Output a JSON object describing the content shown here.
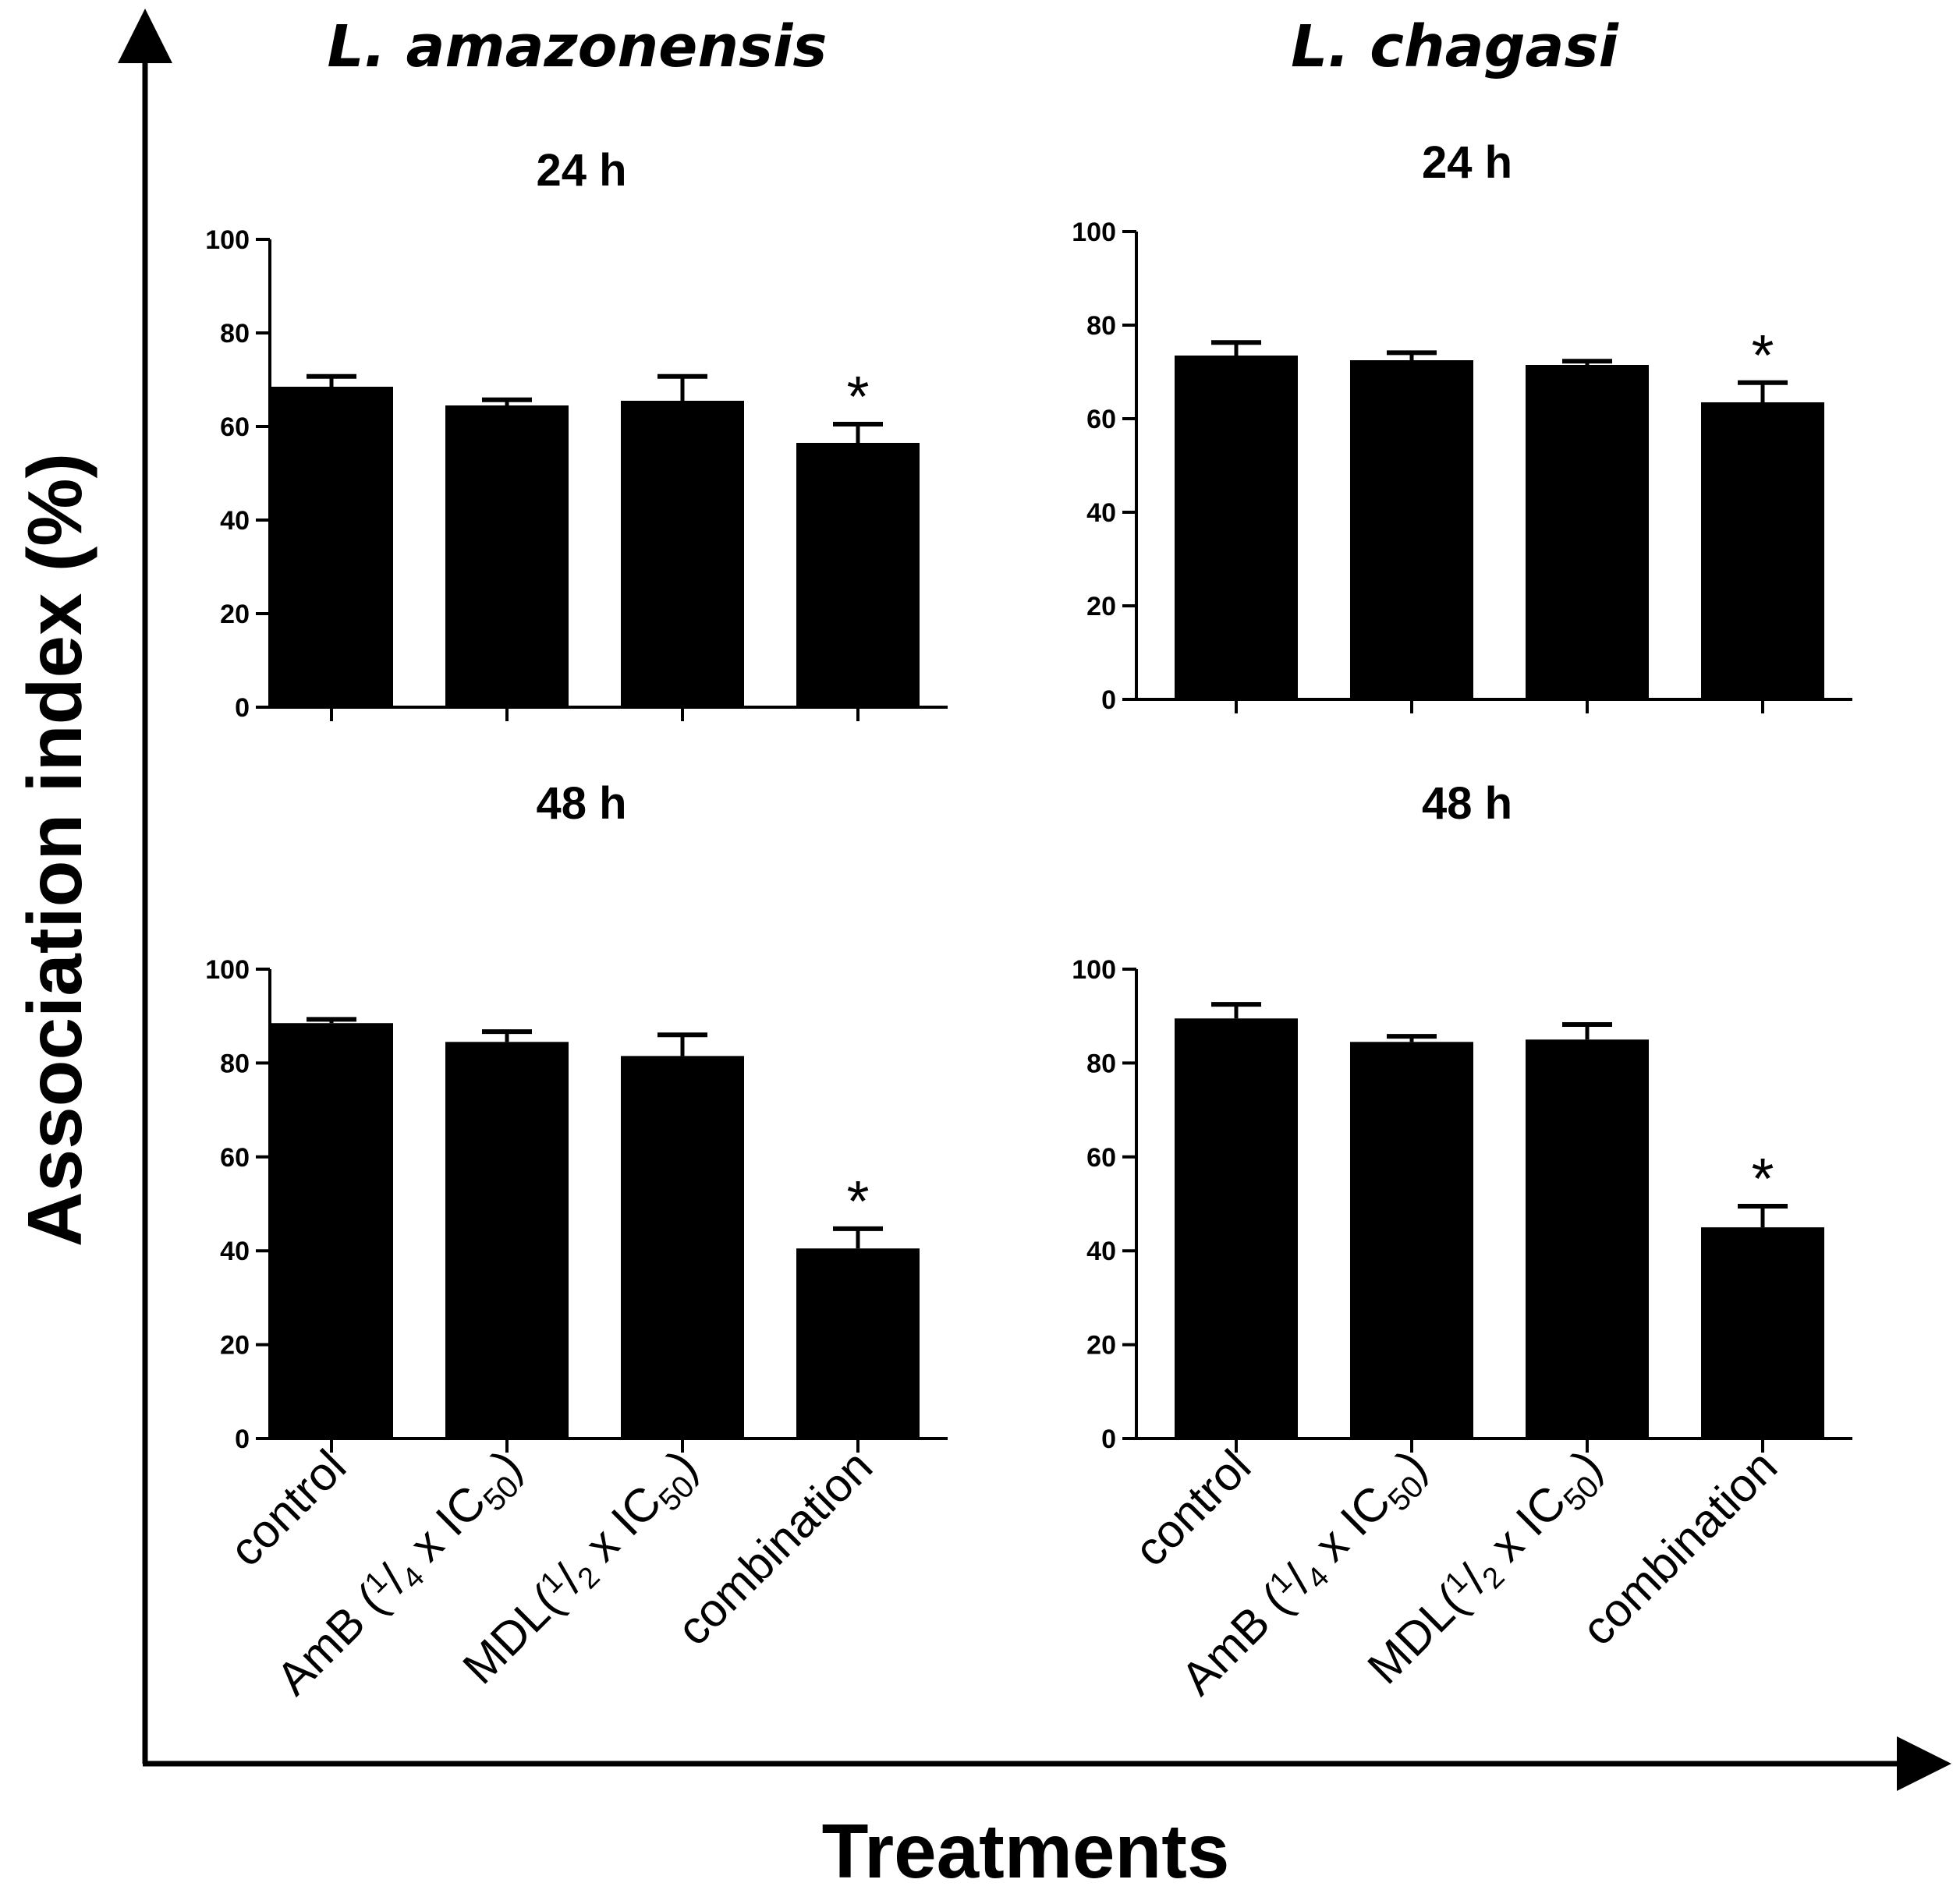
{
  "figure": {
    "y_axis_title": "Association index (%)",
    "x_axis_title": "Treatments",
    "species_left": "L. amazonensis",
    "species_right": "L. chagasi"
  },
  "chart_data": [
    {
      "type": "bar",
      "title": "24 h",
      "species": "L. amazonensis",
      "categories": [
        "control",
        "AmB (1/4 x IC50)",
        "MDL(1/2 x IC50)",
        "combination"
      ],
      "values": [
        68.5,
        64.5,
        65.5,
        56.5
      ],
      "errors": [
        2.2,
        1.2,
        5.2,
        4.0
      ],
      "significance": [
        "",
        "",
        "",
        "*"
      ],
      "ylim": [
        0,
        100
      ],
      "yticks": [
        0,
        20,
        40,
        60,
        80,
        100
      ],
      "grid": false,
      "bar_color": "#000000"
    },
    {
      "type": "bar",
      "title": "24 h",
      "species": "L. chagasi",
      "categories": [
        "control",
        "AmB (1/4 x IC50)",
        "MDL(1/2 x IC50)",
        "combination"
      ],
      "values": [
        73.5,
        72.5,
        71.5,
        63.5
      ],
      "errors": [
        2.8,
        1.6,
        0.8,
        4.2
      ],
      "significance": [
        "",
        "",
        "",
        "*"
      ],
      "ylim": [
        0,
        100
      ],
      "yticks": [
        0,
        20,
        40,
        60,
        80,
        100
      ],
      "grid": false,
      "bar_color": "#000000"
    },
    {
      "type": "bar",
      "title": "48 h",
      "species": "L. amazonensis",
      "categories": [
        "control",
        "AmB (1/4 x IC50)",
        "MDL(1/2 x IC50)",
        "combination"
      ],
      "values": [
        88.5,
        84.5,
        81.5,
        40.5
      ],
      "errors": [
        0.8,
        2.2,
        4.5,
        4.2
      ],
      "significance": [
        "",
        "",
        "",
        "*"
      ],
      "ylim": [
        0,
        100
      ],
      "yticks": [
        0,
        20,
        40,
        60,
        80,
        100
      ],
      "grid": false,
      "bar_color": "#000000"
    },
    {
      "type": "bar",
      "title": "48 h",
      "species": "L. chagasi",
      "categories": [
        "control",
        "AmB (1/4 x IC50)",
        "MDL(1/2 x IC50)",
        "combination"
      ],
      "values": [
        89.5,
        84.5,
        85.0,
        45.0
      ],
      "errors": [
        3.0,
        1.2,
        3.2,
        4.5
      ],
      "significance": [
        "",
        "",
        "",
        "*"
      ],
      "ylim": [
        0,
        100
      ],
      "yticks": [
        0,
        20,
        40,
        60,
        80,
        100
      ],
      "grid": false,
      "bar_color": "#000000"
    }
  ]
}
